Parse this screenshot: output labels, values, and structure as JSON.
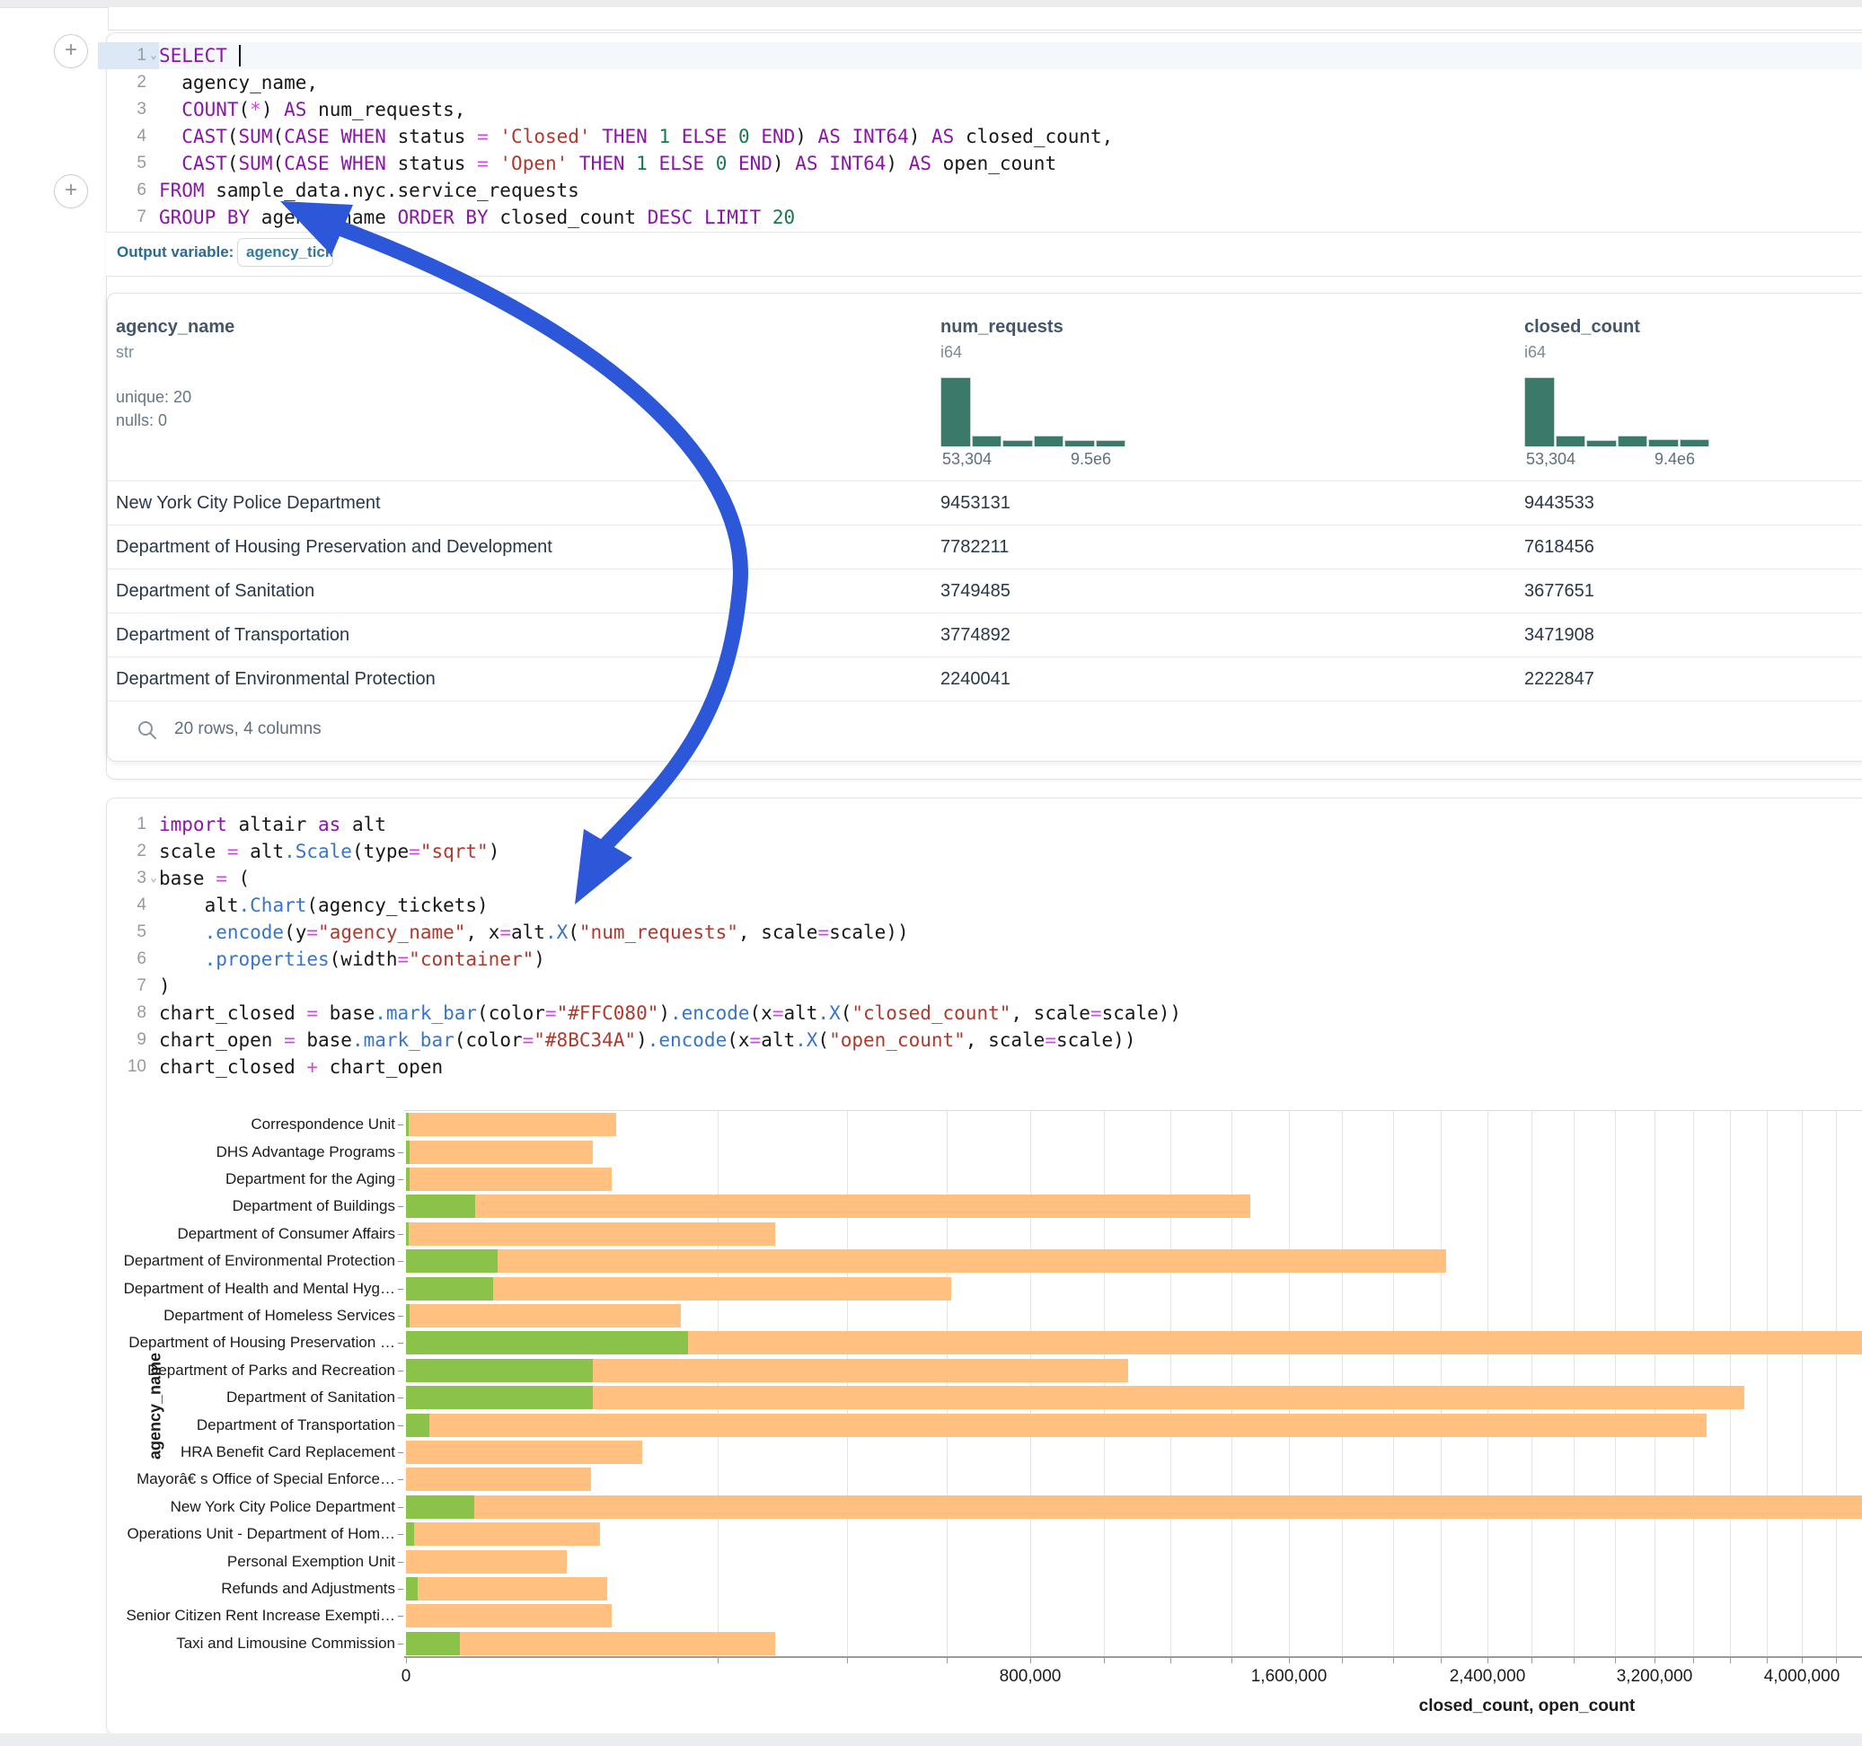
{
  "colors": {
    "keyword": "#8a16a8",
    "string": "#ad3a2e",
    "number": "#177a4a",
    "operator": "#c44fd8",
    "function": "#3a74c9",
    "plain": "#17181a",
    "histogram": "#3B7A6A",
    "bar_closed": "#FFC080",
    "bar_open": "#8BC34A",
    "arrow": "#2B57D8",
    "output_label": "#2B6A93"
  },
  "plus_buttons": {
    "top_label": "+",
    "middle_label": "+"
  },
  "sql_cell": {
    "active_line": 1,
    "chevron_lines": [
      1
    ],
    "lines": [
      [
        [
          "k",
          "SELECT"
        ],
        [
          "t",
          " "
        ],
        [
          "caret",
          ""
        ]
      ],
      [
        [
          "t",
          "  agency_name,"
        ]
      ],
      [
        [
          "t",
          "  "
        ],
        [
          "k",
          "COUNT"
        ],
        [
          "t",
          "("
        ],
        [
          "o",
          "*"
        ],
        [
          "t",
          ") "
        ],
        [
          "k",
          "AS"
        ],
        [
          "t",
          " num_requests,"
        ]
      ],
      [
        [
          "t",
          "  "
        ],
        [
          "k",
          "CAST"
        ],
        [
          "t",
          "("
        ],
        [
          "k",
          "SUM"
        ],
        [
          "t",
          "("
        ],
        [
          "k",
          "CASE"
        ],
        [
          "t",
          " "
        ],
        [
          "k",
          "WHEN"
        ],
        [
          "t",
          " status "
        ],
        [
          "o",
          "="
        ],
        [
          "t",
          " "
        ],
        [
          "s",
          "'Closed'"
        ],
        [
          "t",
          " "
        ],
        [
          "k",
          "THEN"
        ],
        [
          "t",
          " "
        ],
        [
          "n",
          "1"
        ],
        [
          "t",
          " "
        ],
        [
          "k",
          "ELSE"
        ],
        [
          "t",
          " "
        ],
        [
          "n",
          "0"
        ],
        [
          "t",
          " "
        ],
        [
          "k",
          "END"
        ],
        [
          "t",
          ") "
        ],
        [
          "k",
          "AS"
        ],
        [
          "t",
          " "
        ],
        [
          "k",
          "INT64"
        ],
        [
          "t",
          ") "
        ],
        [
          "k",
          "AS"
        ],
        [
          "t",
          " closed_count,"
        ]
      ],
      [
        [
          "t",
          "  "
        ],
        [
          "k",
          "CAST"
        ],
        [
          "t",
          "("
        ],
        [
          "k",
          "SUM"
        ],
        [
          "t",
          "("
        ],
        [
          "k",
          "CASE"
        ],
        [
          "t",
          " "
        ],
        [
          "k",
          "WHEN"
        ],
        [
          "t",
          " status "
        ],
        [
          "o",
          "="
        ],
        [
          "t",
          " "
        ],
        [
          "s",
          "'Open'"
        ],
        [
          "t",
          " "
        ],
        [
          "k",
          "THEN"
        ],
        [
          "t",
          " "
        ],
        [
          "n",
          "1"
        ],
        [
          "t",
          " "
        ],
        [
          "k",
          "ELSE"
        ],
        [
          "t",
          " "
        ],
        [
          "n",
          "0"
        ],
        [
          "t",
          " "
        ],
        [
          "k",
          "END"
        ],
        [
          "t",
          ") "
        ],
        [
          "k",
          "AS"
        ],
        [
          "t",
          " "
        ],
        [
          "k",
          "INT64"
        ],
        [
          "t",
          ") "
        ],
        [
          "k",
          "AS"
        ],
        [
          "t",
          " open_count"
        ]
      ],
      [
        [
          "k",
          "FROM"
        ],
        [
          "t",
          " sample_data.nyc.service_requests"
        ]
      ],
      [
        [
          "k",
          "GROUP BY"
        ],
        [
          "t",
          " agency_name "
        ],
        [
          "k",
          "ORDER BY"
        ],
        [
          "t",
          " closed_count "
        ],
        [
          "k",
          "DESC"
        ],
        [
          "t",
          " "
        ],
        [
          "k",
          "LIMIT"
        ],
        [
          "t",
          " "
        ],
        [
          "n",
          "20"
        ]
      ]
    ],
    "output_label": "Output variable:",
    "output_variable": "agency_tickets"
  },
  "table": {
    "columns": [
      {
        "name": "agency_name",
        "type": "str",
        "meta": [
          "unique: 20",
          "nulls: 0"
        ]
      },
      {
        "name": "num_requests",
        "type": "i64",
        "hist": {
          "values": [
            100,
            14,
            8,
            14,
            8,
            8
          ],
          "min_label": "53,304",
          "max_label": "9.5e6"
        }
      },
      {
        "name": "closed_count",
        "type": "i64",
        "hist": {
          "values": [
            100,
            15,
            8,
            15,
            9,
            9
          ],
          "min_label": "53,304",
          "max_label": "9.4e6"
        }
      }
    ],
    "rows": [
      [
        "New York City Police Department",
        "9453131",
        "9443533"
      ],
      [
        "Department of Housing Preservation and Development",
        "7782211",
        "7618456"
      ],
      [
        "Department of Sanitation",
        "3749485",
        "3677651"
      ],
      [
        "Department of Transportation",
        "3774892",
        "3471908"
      ],
      [
        "Department of Environmental Protection",
        "2240041",
        "2222847"
      ]
    ],
    "footer": "20 rows, 4 columns"
  },
  "python_cell": {
    "chevron_lines": [
      3
    ],
    "lines": [
      [
        [
          "k",
          "import"
        ],
        [
          "t",
          " altair "
        ],
        [
          "k",
          "as"
        ],
        [
          "t",
          " alt"
        ]
      ],
      [
        [
          "t",
          "scale "
        ],
        [
          "o",
          "="
        ],
        [
          "t",
          " alt"
        ],
        [
          "f",
          ".Scale"
        ],
        [
          "t",
          "(type"
        ],
        [
          "o",
          "="
        ],
        [
          "s",
          "\"sqrt\""
        ],
        [
          "t",
          ")"
        ]
      ],
      [
        [
          "t",
          "base "
        ],
        [
          "o",
          "="
        ],
        [
          "t",
          " ("
        ]
      ],
      [
        [
          "t",
          "    alt"
        ],
        [
          "f",
          ".Chart"
        ],
        [
          "t",
          "(agency_tickets)"
        ]
      ],
      [
        [
          "t",
          "    "
        ],
        [
          "f",
          ".encode"
        ],
        [
          "t",
          "(y"
        ],
        [
          "o",
          "="
        ],
        [
          "s",
          "\"agency_name\""
        ],
        [
          "t",
          ", x"
        ],
        [
          "o",
          "="
        ],
        [
          "t",
          "alt"
        ],
        [
          "f",
          ".X"
        ],
        [
          "t",
          "("
        ],
        [
          "s",
          "\"num_requests\""
        ],
        [
          "t",
          ", scale"
        ],
        [
          "o",
          "="
        ],
        [
          "t",
          "scale))"
        ]
      ],
      [
        [
          "t",
          "    "
        ],
        [
          "f",
          ".properties"
        ],
        [
          "t",
          "(width"
        ],
        [
          "o",
          "="
        ],
        [
          "s",
          "\"container\""
        ],
        [
          "t",
          ")"
        ]
      ],
      [
        [
          "t",
          ")"
        ]
      ],
      [
        [
          "t",
          "chart_closed "
        ],
        [
          "o",
          "="
        ],
        [
          "t",
          " base"
        ],
        [
          "f",
          ".mark_bar"
        ],
        [
          "t",
          "(color"
        ],
        [
          "o",
          "="
        ],
        [
          "s",
          "\"#FFC080\""
        ],
        [
          "t",
          ")"
        ],
        [
          "f",
          ".encode"
        ],
        [
          "t",
          "(x"
        ],
        [
          "o",
          "="
        ],
        [
          "t",
          "alt"
        ],
        [
          "f",
          ".X"
        ],
        [
          "t",
          "("
        ],
        [
          "s",
          "\"closed_count\""
        ],
        [
          "t",
          ", scale"
        ],
        [
          "o",
          "="
        ],
        [
          "t",
          "scale))"
        ]
      ],
      [
        [
          "t",
          "chart_open "
        ],
        [
          "o",
          "="
        ],
        [
          "t",
          " base"
        ],
        [
          "f",
          ".mark_bar"
        ],
        [
          "t",
          "(color"
        ],
        [
          "o",
          "="
        ],
        [
          "s",
          "\"#8BC34A\""
        ],
        [
          "t",
          ")"
        ],
        [
          "f",
          ".encode"
        ],
        [
          "t",
          "(x"
        ],
        [
          "o",
          "="
        ],
        [
          "t",
          "alt"
        ],
        [
          "f",
          ".X"
        ],
        [
          "t",
          "("
        ],
        [
          "s",
          "\"open_count\""
        ],
        [
          "t",
          ", scale"
        ],
        [
          "o",
          "="
        ],
        [
          "t",
          "scale))"
        ]
      ],
      [
        [
          "t",
          "chart_closed "
        ],
        [
          "o",
          "+"
        ],
        [
          "t",
          " chart_open"
        ]
      ]
    ]
  },
  "chart_data": {
    "type": "bar",
    "orientation": "horizontal",
    "x_scale": "sqrt",
    "title": "",
    "xlabel": "closed_count, open_count",
    "ylabel": "agency_name",
    "xlim": [
      0,
      4360000
    ],
    "gridline_step": 200000,
    "legend": "none",
    "categories": [
      "Correspondence Unit",
      "DHS Advantage Programs",
      "Department for the Aging",
      "Department of Buildings",
      "Department of Consumer Affairs",
      "Department of Environmental Protection",
      "Department of Health and Mental Hyg…",
      "Department of Homeless Services",
      "Department of Housing Preservation …",
      "Department of Parks and Recreation",
      "Department of Sanitation",
      "Department of Transportation",
      "HRA Benefit Card Replacement",
      "Mayorâ€ s Office of Special Enforce…",
      "New York City Police Department",
      "Operations Unit - Department of Hom…",
      "Personal Exemption Unit",
      "Refunds and Adjustments",
      "Senior Citizen Rent Increase Exempti…",
      "Taxi and Limousine Commission"
    ],
    "series": [
      {
        "name": "closed_count",
        "color": "#FFC080",
        "values": [
          91000,
          72000,
          87000,
          1465000,
          280000,
          2222847,
          610000,
          155000,
          7618456,
          1070000,
          3677651,
          3471908,
          115000,
          70000,
          9443533,
          77000,
          53304,
          83000,
          87000,
          280000
        ]
      },
      {
        "name": "open_count",
        "color": "#8BC34A",
        "values": [
          20,
          25,
          25,
          9800,
          20,
          17194,
          15500,
          30,
          163755,
          72000,
          71834,
          1100,
          0,
          0,
          9598,
          120,
          0,
          260,
          0,
          6000
        ]
      }
    ],
    "x_ticks": [
      {
        "v": 0,
        "label": "0"
      },
      {
        "v": 800000,
        "label": "800,000"
      },
      {
        "v": 1600000,
        "label": "1,600,000"
      },
      {
        "v": 2400000,
        "label": "2,400,000"
      },
      {
        "v": 3200000,
        "label": "3,200,000"
      },
      {
        "v": 4000000,
        "label": "4,000,000"
      }
    ]
  }
}
